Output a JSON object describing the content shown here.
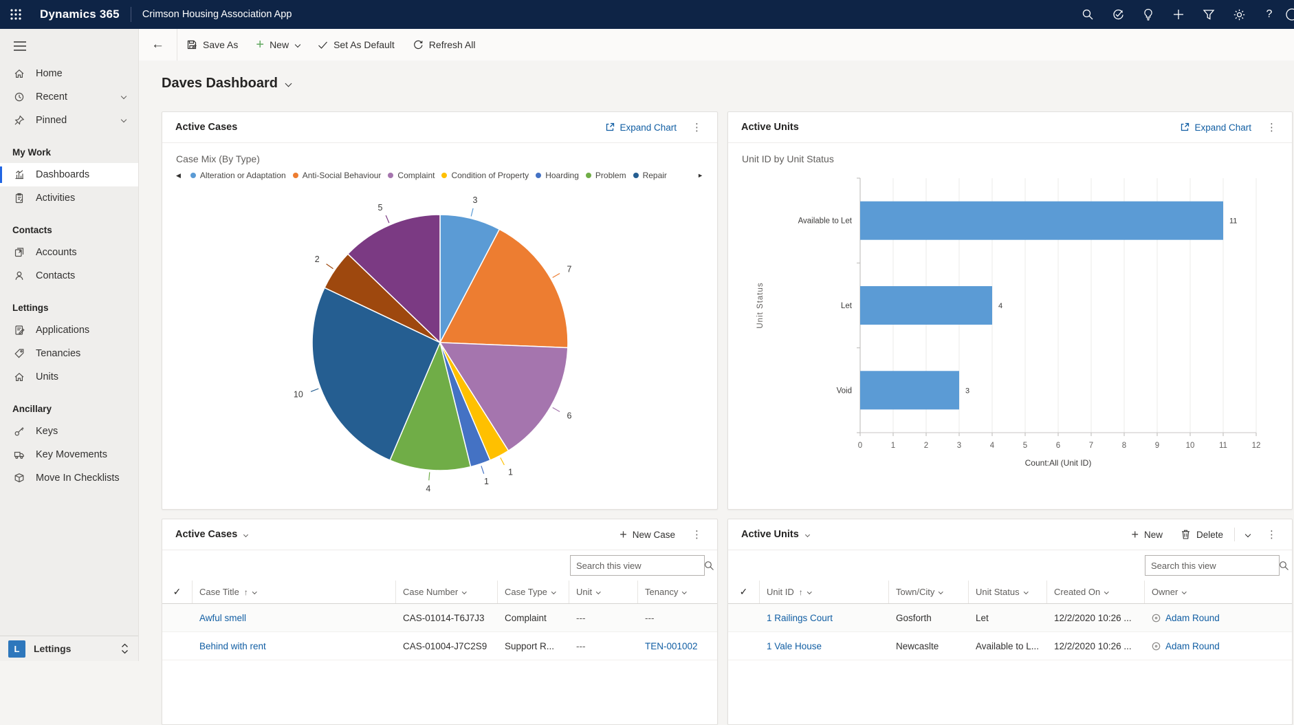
{
  "navbar": {
    "brand": "Dynamics 365",
    "app_name": "Crimson Housing Association App"
  },
  "command_bar": {
    "save_as": "Save As",
    "new": "New",
    "set_default": "Set As Default",
    "refresh_all": "Refresh All"
  },
  "page": {
    "title": "Daves Dashboard"
  },
  "sidebar": {
    "top_items": [
      {
        "label": "Home"
      },
      {
        "label": "Recent"
      },
      {
        "label": "Pinned"
      }
    ],
    "groups": [
      {
        "label": "My Work",
        "items": [
          {
            "label": "Dashboards"
          },
          {
            "label": "Activities"
          }
        ]
      },
      {
        "label": "Contacts",
        "items": [
          {
            "label": "Accounts"
          },
          {
            "label": "Contacts"
          }
        ]
      },
      {
        "label": "Lettings",
        "items": [
          {
            "label": "Applications"
          },
          {
            "label": "Tenancies"
          },
          {
            "label": "Units"
          }
        ]
      },
      {
        "label": "Ancillary",
        "items": [
          {
            "label": "Keys"
          },
          {
            "label": "Key Movements"
          },
          {
            "label": "Move In Checklists"
          }
        ]
      }
    ],
    "area_switcher": {
      "letter": "L",
      "label": "Lettings"
    }
  },
  "panels": {
    "cases_chart": {
      "title": "Active Cases",
      "expand_label": "Expand Chart"
    },
    "units_chart": {
      "title": "Active Units",
      "expand_label": "Expand Chart"
    },
    "cases_grid": {
      "title": "Active Cases",
      "new_label": "New Case",
      "search_placeholder": "Search this view",
      "columns": [
        "Case Title",
        "Case Number",
        "Case Type",
        "Unit",
        "Tenancy"
      ],
      "rows": [
        {
          "title": "Awful smell",
          "number": "CAS-01014-T6J7J3",
          "type": "Complaint",
          "unit": "---",
          "tenancy": "---"
        },
        {
          "title": "Behind with rent",
          "number": "CAS-01004-J7C2S9",
          "type": "Support R...",
          "unit": "---",
          "tenancy": "TEN-001002"
        }
      ]
    },
    "units_grid": {
      "title": "Active Units",
      "new_label": "New",
      "delete_label": "Delete",
      "search_placeholder": "Search this view",
      "columns": [
        "Unit ID",
        "Town/City",
        "Unit Status",
        "Created On",
        "Owner"
      ],
      "rows": [
        {
          "id": "1 Railings Court",
          "town": "Gosforth",
          "status": "Let",
          "created": "12/2/2020 10:26 ...",
          "owner": "Adam Round"
        },
        {
          "id": "1 Vale House",
          "town": "Newcaslte",
          "status": "Available to L...",
          "created": "12/2/2020 10:26 ...",
          "owner": "Adam Round"
        }
      ]
    }
  },
  "chart_data": [
    {
      "type": "pie",
      "panel": "Active Cases",
      "title": "Case Mix (By Type)",
      "slices": [
        {
          "label": "Alteration or Adaptation",
          "value": 3,
          "color": "#5B9BD5"
        },
        {
          "label": "Anti-Social Behaviour",
          "value": 7,
          "color": "#ED7D31"
        },
        {
          "label": "Complaint",
          "value": 6,
          "color": "#A575AE"
        },
        {
          "label": "Condition of Property",
          "value": 1,
          "color": "#FFC000"
        },
        {
          "label": "Hoarding",
          "value": 1,
          "color": "#4472C4"
        },
        {
          "label": "Problem",
          "value": 4,
          "color": "#70AD47"
        },
        {
          "label": "Repair",
          "value": 10,
          "color": "#255E91"
        },
        {
          "label": "",
          "value": 2,
          "color": "#9E480E"
        },
        {
          "label": "",
          "value": 5,
          "color": "#7B3A83"
        }
      ],
      "legend_visible_count": 7
    },
    {
      "type": "bar",
      "orientation": "horizontal",
      "panel": "Active Units",
      "title": "Unit ID by Unit Status",
      "categories": [
        "Available to Let",
        "Let",
        "Void"
      ],
      "values": [
        11,
        4,
        3
      ],
      "xlim": [
        0,
        12
      ],
      "xticks": [
        0,
        1,
        2,
        3,
        4,
        5,
        6,
        7,
        8,
        9,
        10,
        11,
        12
      ],
      "xlabel": "Count:All (Unit ID)",
      "ylabel": "Unit Status",
      "bar_color": "#5B9BD5",
      "grid": true
    }
  ]
}
